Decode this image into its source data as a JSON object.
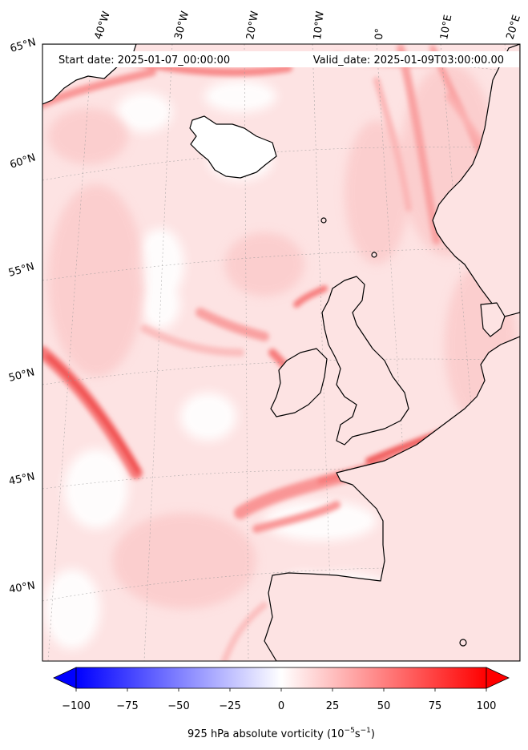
{
  "header": {
    "start_date": "Start date: 2025-01-07_00:00:00",
    "valid_date": "Valid_date: 2025-01-09T03:00:00.00"
  },
  "lon_labels": [
    "40°W",
    "30°W",
    "20°W",
    "10°W",
    "0°",
    "10°E",
    "20°E"
  ],
  "lat_labels": [
    "65°N",
    "60°N",
    "55°N",
    "50°N",
    "45°N",
    "40°N"
  ],
  "colorbar": {
    "ticks": [
      "−100",
      "−75",
      "−50",
      "−25",
      "0",
      "25",
      "50",
      "75",
      "100"
    ],
    "min": -100,
    "max": 100,
    "label_main": "925 hPa absolute vorticity (10",
    "label_exp1": "−5",
    "label_mid": "s",
    "label_exp2": "−1",
    "label_end": ")",
    "colormap": "bwr",
    "extend": "both"
  },
  "colors": {
    "ocean_base": "#fde3e3",
    "strong": "#f55656",
    "medium": "#f99090",
    "light": "#fcc4c4",
    "calm": "#ffffff",
    "coast": "#000000"
  }
}
